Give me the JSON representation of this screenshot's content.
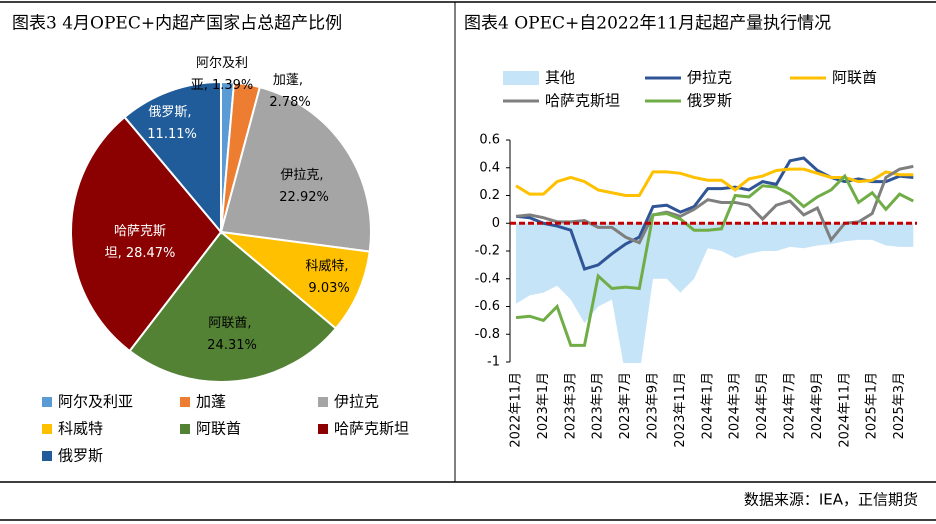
{
  "chart_data": [
    {
      "type": "pie",
      "title": "图表3   4月OPEC+内超产国家占总超产比例",
      "categories": [
        "阿尔及利亚",
        "加蓬",
        "伊拉克",
        "科威特",
        "阿联酋",
        "哈萨克斯坦",
        "俄罗斯"
      ],
      "values": [
        1.39,
        2.78,
        22.92,
        9.03,
        24.31,
        28.47,
        11.11
      ],
      "value_labels": [
        "阿尔及利亚, 1.39%",
        "加蓬, 2.78%",
        "伊拉克, 22.92%",
        "科威特, 9.03%",
        "阿联酋, 24.31%",
        "哈萨克斯坦, 28.47%",
        "俄罗斯, 11.11%"
      ],
      "colors": [
        "#5b9bd5",
        "#ed7d31",
        "#a5a5a5",
        "#ffc000",
        "#548235",
        "#8b0000",
        "#1f5c99"
      ]
    },
    {
      "type": "line",
      "title": "图表4   OPEC+自2022年11月起超产量执行情况",
      "categories": [
        "2022年11月",
        null,
        "2023年1月",
        null,
        "2023年3月",
        null,
        "2023年5月",
        null,
        "2023年7月",
        null,
        "2023年9月",
        null,
        "2023年11月",
        null,
        "2024年1月",
        null,
        "2024年3月",
        null,
        "2024年5月",
        null,
        "2024年7月",
        null,
        "2024年9月",
        null,
        "2024年11月",
        null,
        "2025年1月",
        null,
        "2025年3月",
        null
      ],
      "series": [
        {
          "name": "其他",
          "type": "area",
          "color": "#c6e4f7",
          "values": [
            -0.58,
            -0.52,
            -0.5,
            -0.45,
            -0.55,
            -0.72,
            -0.6,
            -0.55,
            -1.1,
            -1.1,
            -0.4,
            -0.4,
            -0.5,
            -0.4,
            -0.18,
            -0.2,
            -0.25,
            -0.22,
            -0.2,
            -0.2,
            -0.17,
            -0.18,
            -0.16,
            -0.15,
            -0.13,
            -0.12,
            -0.12,
            -0.16,
            -0.17,
            -0.17
          ]
        },
        {
          "name": "伊拉克",
          "color": "#2f5597",
          "values": [
            0.05,
            0.04,
            0.0,
            -0.02,
            -0.05,
            -0.33,
            -0.3,
            -0.22,
            -0.15,
            -0.1,
            0.12,
            0.13,
            0.08,
            0.12,
            0.25,
            0.25,
            0.26,
            0.24,
            0.3,
            0.28,
            0.45,
            0.47,
            0.38,
            0.33,
            0.3,
            0.32,
            0.3,
            0.3,
            0.34,
            0.33
          ]
        },
        {
          "name": "阿联酋",
          "color": "#ffc000",
          "values": [
            0.27,
            0.21,
            0.21,
            0.3,
            0.33,
            0.3,
            0.24,
            0.22,
            0.2,
            0.2,
            0.37,
            0.37,
            0.36,
            0.33,
            0.31,
            0.31,
            0.24,
            0.32,
            0.34,
            0.38,
            0.39,
            0.39,
            0.36,
            0.33,
            0.33,
            0.3,
            0.31,
            0.37,
            0.35,
            0.35
          ]
        },
        {
          "name": "哈萨克斯坦",
          "color": "#7f7f7f",
          "values": [
            0.05,
            0.06,
            0.04,
            0.01,
            0.01,
            0.02,
            -0.03,
            -0.03,
            -0.1,
            -0.14,
            0.06,
            0.08,
            0.05,
            0.1,
            0.17,
            0.15,
            0.15,
            0.13,
            0.03,
            0.13,
            0.16,
            0.06,
            0.11,
            -0.12,
            0.0,
            0.01,
            0.07,
            0.33,
            0.39,
            0.41
          ]
        },
        {
          "name": "俄罗斯",
          "color": "#70ad47",
          "values": [
            -0.68,
            -0.67,
            -0.7,
            -0.6,
            -0.88,
            -0.88,
            -0.38,
            -0.47,
            -0.46,
            -0.47,
            0.06,
            0.07,
            0.03,
            -0.05,
            -0.05,
            -0.04,
            0.2,
            0.19,
            0.27,
            0.26,
            0.21,
            0.12,
            0.19,
            0.24,
            0.34,
            0.15,
            0.22,
            0.1,
            0.21,
            0.16
          ]
        }
      ],
      "ylim": [
        -1,
        0.6
      ],
      "yticks": [
        -1,
        -0.8,
        -0.6,
        -0.4,
        -0.2,
        0,
        0.2,
        0.4,
        0.6
      ],
      "zero_line_color": "#c00000"
    }
  ],
  "source": "数据来源：IEA，正信期货"
}
